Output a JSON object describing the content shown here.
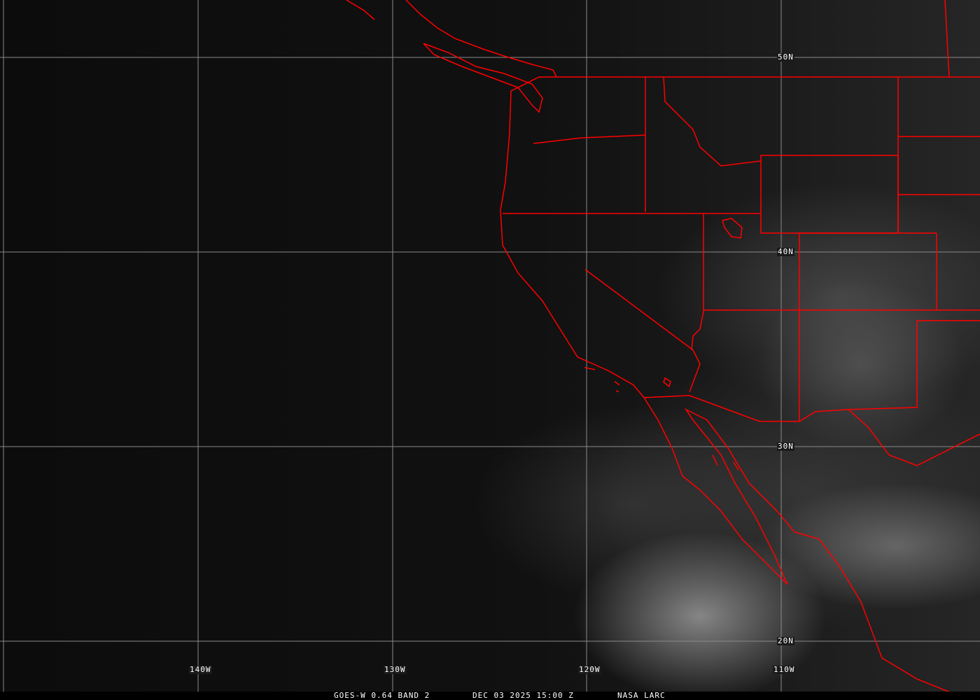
{
  "map": {
    "lat_labels": [
      "50N",
      "40N",
      "30N",
      "20N"
    ],
    "lon_labels": [
      "140W",
      "130W",
      "120W",
      "110W"
    ],
    "boundary_color": "#ff0000",
    "grid_color": "#8a8a8a"
  },
  "footer": {
    "product": "GOES-W 0.64 BAND 2",
    "datetime": "DEC 03 2025 15:00 Z",
    "source": "NASA LARC"
  }
}
